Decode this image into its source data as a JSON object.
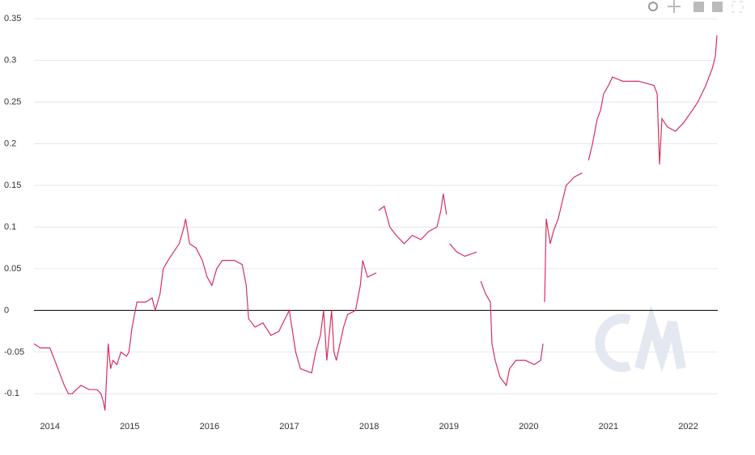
{
  "chart_data": {
    "type": "line",
    "color": "#d6305f",
    "grid": true,
    "zero_line": true,
    "xlim": [
      2013.8,
      2022.37
    ],
    "xticks": [
      2014,
      2015,
      2016,
      2017,
      2018,
      2019,
      2020,
      2021,
      2022
    ],
    "ylim": [
      -0.123,
      0.355
    ],
    "yticks": [
      -0.1,
      -0.05,
      0,
      0.05,
      0.1,
      0.15,
      0.2,
      0.25,
      0.3,
      0.35
    ],
    "x": [
      2013.8,
      2013.88,
      2014.0,
      2014.1,
      2014.18,
      2014.23,
      2014.28,
      2014.33,
      2014.39,
      2014.49,
      2014.59,
      2014.64,
      2014.67,
      2014.69,
      2014.73,
      2014.76,
      2014.79,
      2014.84,
      2014.89,
      2014.96,
      2014.99,
      2015.03,
      2015.09,
      2015.2,
      2015.28,
      2015.32,
      2015.38,
      2015.42,
      2015.48,
      2015.55,
      2015.62,
      2015.68,
      2015.7,
      2015.75,
      2015.83,
      2015.91,
      2015.97,
      2016.03,
      2016.09,
      2016.16,
      2016.31,
      2016.41,
      2016.46,
      2016.49,
      2016.57,
      2016.67,
      2016.77,
      2016.87,
      2016.92,
      2017.0,
      2017.08,
      2017.14,
      2017.28,
      2017.33,
      2017.39,
      2017.43,
      2017.47,
      2017.51,
      2017.53,
      2017.56,
      2017.59,
      2017.68,
      2017.73,
      2017.83,
      2017.89,
      2017.92,
      2017.98,
      2018.09,
      2018.1,
      2018.12,
      2018.19,
      2018.26,
      2018.34,
      2018.44,
      2018.54,
      2018.65,
      2018.75,
      2018.85,
      2018.9,
      2018.93,
      2018.97,
      2018.99,
      2019.01,
      2019.1,
      2019.2,
      2019.35,
      2019.37,
      2019.4,
      2019.46,
      2019.52,
      2019.54,
      2019.58,
      2019.64,
      2019.72,
      2019.76,
      2019.84,
      2019.96,
      2020.07,
      2020.15,
      2020.18,
      2020.19,
      2020.2,
      2020.22,
      2020.27,
      2020.31,
      2020.37,
      2020.42,
      2020.47,
      2020.57,
      2020.67,
      2020.71,
      2020.75,
      2020.8,
      2020.86,
      2020.9,
      2020.94,
      2021.0,
      2021.05,
      2021.18,
      2021.38,
      2021.57,
      2021.61,
      2021.64,
      2021.67,
      2021.74,
      2021.84,
      2021.94,
      2022.05,
      2022.12,
      2022.22,
      2022.3,
      2022.34,
      2022.36
    ],
    "values": [
      -0.04,
      -0.045,
      -0.045,
      -0.07,
      -0.09,
      -0.1,
      -0.1,
      -0.095,
      -0.09,
      -0.095,
      -0.095,
      -0.1,
      -0.11,
      -0.12,
      -0.04,
      -0.07,
      -0.06,
      -0.065,
      -0.05,
      -0.055,
      -0.05,
      -0.02,
      0.01,
      0.01,
      0.015,
      0.0,
      0.02,
      0.05,
      0.06,
      0.07,
      0.08,
      0.1,
      0.11,
      0.08,
      0.075,
      0.06,
      0.04,
      0.03,
      0.05,
      0.06,
      0.06,
      0.055,
      0.03,
      -0.01,
      -0.02,
      -0.015,
      -0.03,
      -0.025,
      -0.015,
      0.0,
      -0.05,
      -0.07,
      -0.075,
      -0.05,
      -0.03,
      0.0,
      -0.06,
      -0.02,
      0.0,
      -0.05,
      -0.06,
      -0.02,
      -0.005,
      0.0,
      0.03,
      0.06,
      0.04,
      0.045,
      null,
      0.12,
      0.125,
      0.1,
      0.09,
      0.08,
      0.09,
      0.085,
      0.095,
      0.1,
      0.12,
      0.14,
      0.115,
      null,
      0.08,
      0.07,
      0.065,
      0.07,
      null,
      0.035,
      0.02,
      0.01,
      -0.04,
      -0.06,
      -0.08,
      -0.09,
      -0.07,
      -0.06,
      -0.06,
      -0.065,
      -0.06,
      -0.04,
      null,
      0.01,
      0.11,
      0.08,
      0.095,
      0.11,
      0.13,
      0.15,
      0.16,
      0.165,
      null,
      0.18,
      0.2,
      0.23,
      0.24,
      0.26,
      0.27,
      0.28,
      0.275,
      0.275,
      0.27,
      0.26,
      0.175,
      0.23,
      0.22,
      0.215,
      0.225,
      0.24,
      0.25,
      0.27,
      0.29,
      0.305,
      0.33
    ]
  }
}
